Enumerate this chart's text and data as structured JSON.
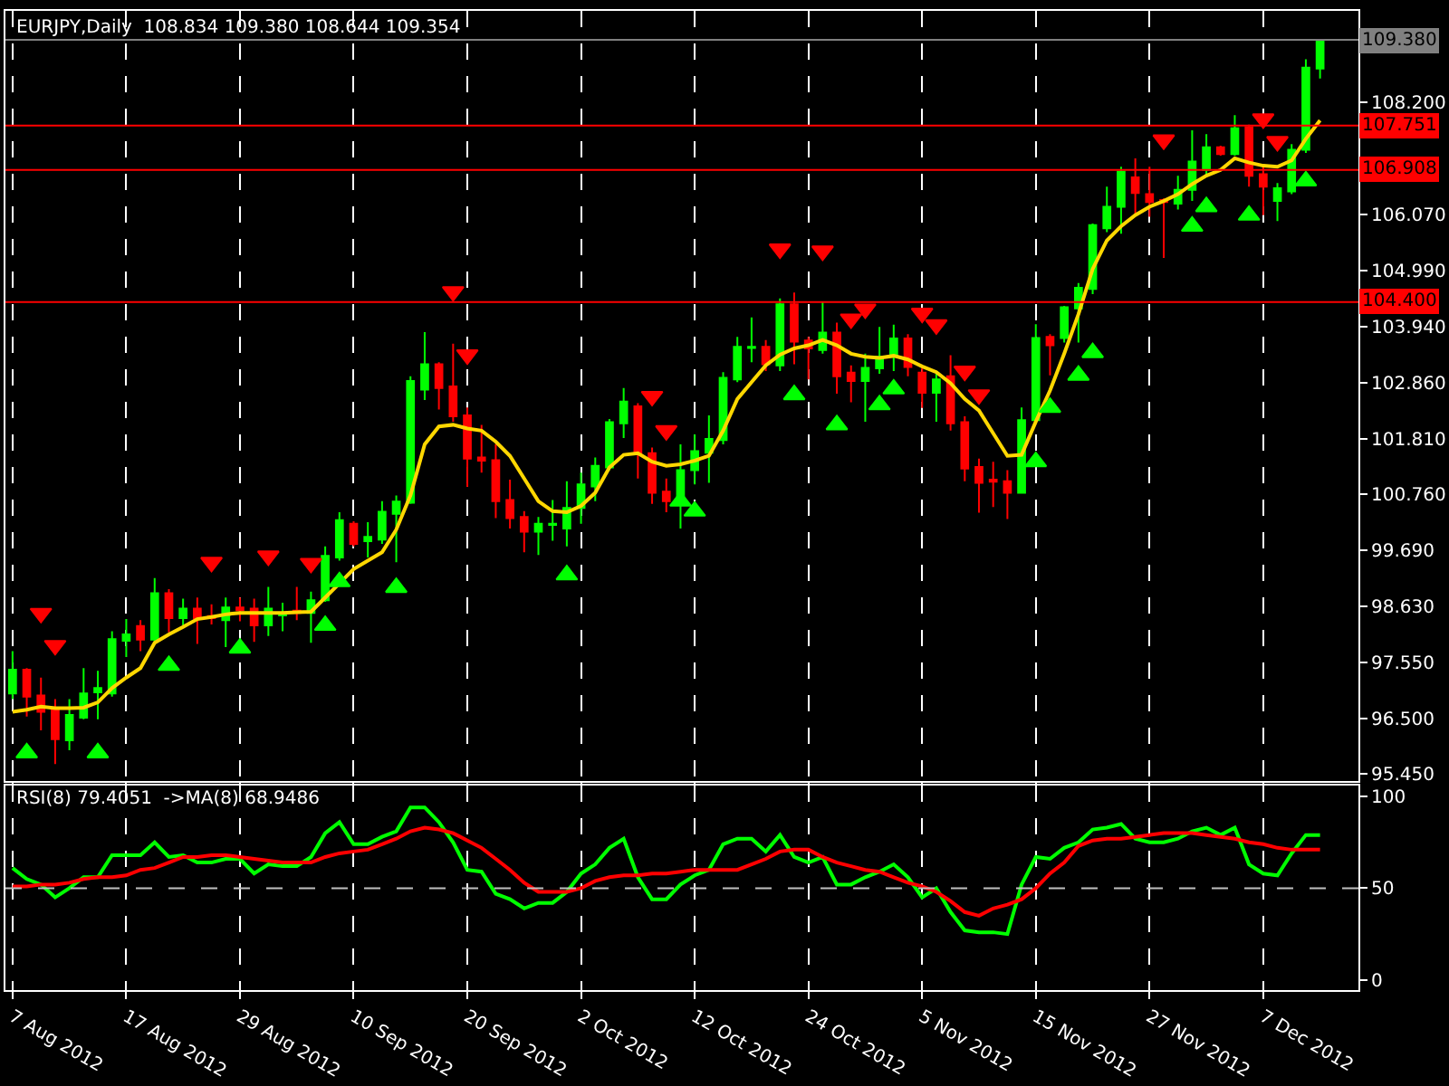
{
  "chart_data": [
    {
      "type": "candlestick",
      "title": "EURJPY,Daily  108.834 109.380 108.644 109.354",
      "categories": [
        null,
        null,
        null,
        null,
        null,
        null,
        null,
        null,
        null,
        null,
        null,
        null,
        null,
        null,
        null,
        null,
        null,
        null,
        null,
        null,
        null,
        null,
        null,
        null,
        null,
        null,
        null,
        null,
        null,
        null,
        null,
        null,
        null,
        null,
        null,
        null,
        null,
        null,
        null,
        null,
        null,
        null,
        null,
        null,
        null,
        null,
        null,
        null,
        null,
        null,
        null,
        null,
        null,
        null,
        null,
        null,
        null,
        null,
        null,
        null,
        null,
        null,
        null,
        null,
        null,
        null,
        null,
        null,
        null,
        null,
        null,
        null,
        null,
        null,
        null,
        null,
        null,
        null,
        null,
        null,
        null,
        null,
        null,
        null,
        null,
        null,
        null,
        null,
        null,
        null,
        null,
        null,
        null
      ],
      "ohlc": [
        [
          96.97,
          97.77,
          96.86,
          97.42
        ],
        [
          97.42,
          97.45,
          96.53,
          96.91
        ],
        [
          96.93,
          97.27,
          96.27,
          96.62
        ],
        [
          96.66,
          96.86,
          95.63,
          96.1
        ],
        [
          96.08,
          96.86,
          95.89,
          96.56
        ],
        [
          96.51,
          97.45,
          96.48,
          96.97
        ],
        [
          96.99,
          97.4,
          96.48,
          97.07
        ],
        [
          96.97,
          98.15,
          96.91,
          98.0
        ],
        [
          97.97,
          98.38,
          97.66,
          98.09
        ],
        [
          98.25,
          98.36,
          97.77,
          97.99
        ],
        [
          97.99,
          99.16,
          97.93,
          98.87
        ],
        [
          98.87,
          98.95,
          98.13,
          98.4
        ],
        [
          98.4,
          98.77,
          98.26,
          98.58
        ],
        [
          98.58,
          98.79,
          97.91,
          98.4
        ],
        [
          98.44,
          98.66,
          98.28,
          98.4
        ],
        [
          98.36,
          98.79,
          97.85,
          98.6
        ],
        [
          98.6,
          98.79,
          98.34,
          98.55
        ],
        [
          98.58,
          98.77,
          97.95,
          98.26
        ],
        [
          98.26,
          98.99,
          98.06,
          98.58
        ],
        [
          98.45,
          98.69,
          98.15,
          98.49
        ],
        [
          98.54,
          98.99,
          98.36,
          98.5
        ],
        [
          98.5,
          98.9,
          97.93,
          98.74
        ],
        [
          98.74,
          99.76,
          98.71,
          99.58
        ],
        [
          99.55,
          100.41,
          99.49,
          100.26
        ],
        [
          100.19,
          100.24,
          99.76,
          99.81
        ],
        [
          99.86,
          100.22,
          99.55,
          99.94
        ],
        [
          99.89,
          100.62,
          99.81,
          100.42
        ],
        [
          100.38,
          100.73,
          99.46,
          100.61
        ],
        [
          100.59,
          102.99,
          100.57,
          102.9
        ],
        [
          102.74,
          103.83,
          102.54,
          103.22
        ],
        [
          103.22,
          103.26,
          102.36,
          102.77
        ],
        [
          102.8,
          103.61,
          102.13,
          102.23
        ],
        [
          102.25,
          102.4,
          100.89,
          101.43
        ],
        [
          101.45,
          102.07,
          101.16,
          101.39
        ],
        [
          101.4,
          101.7,
          100.3,
          100.62
        ],
        [
          100.64,
          101.03,
          100.1,
          100.3
        ],
        [
          100.32,
          100.43,
          99.65,
          100.04
        ],
        [
          100.04,
          100.32,
          99.6,
          100.19
        ],
        [
          100.17,
          100.64,
          99.87,
          100.19
        ],
        [
          100.1,
          101.0,
          99.76,
          100.49
        ],
        [
          100.49,
          101.16,
          100.19,
          100.94
        ],
        [
          100.9,
          101.45,
          100.62,
          101.29
        ],
        [
          101.26,
          102.18,
          101.21,
          102.12
        ],
        [
          102.1,
          102.77,
          101.82,
          102.51
        ],
        [
          102.42,
          102.48,
          101.05,
          101.53
        ],
        [
          101.53,
          101.64,
          100.57,
          100.78
        ],
        [
          100.8,
          101.05,
          100.41,
          100.62
        ],
        [
          100.59,
          101.7,
          100.1,
          101.21
        ],
        [
          101.21,
          101.89,
          100.94,
          101.57
        ],
        [
          101.54,
          102.25,
          100.97,
          101.8
        ],
        [
          101.78,
          103.07,
          101.7,
          102.96
        ],
        [
          102.93,
          103.74,
          102.88,
          103.55
        ],
        [
          103.53,
          104.11,
          103.26,
          103.55
        ],
        [
          103.55,
          103.68,
          103.09,
          103.22
        ],
        [
          103.2,
          104.47,
          103.09,
          104.36
        ],
        [
          104.36,
          104.58,
          103.22,
          103.65
        ],
        [
          103.67,
          103.74,
          102.93,
          103.52
        ],
        [
          103.49,
          104.41,
          103.42,
          103.82
        ],
        [
          103.82,
          104.01,
          102.66,
          102.99
        ],
        [
          103.06,
          103.2,
          102.5,
          102.9
        ],
        [
          102.9,
          103.42,
          102.13,
          103.15
        ],
        [
          103.14,
          103.93,
          103.04,
          103.36
        ],
        [
          103.36,
          103.97,
          103.09,
          103.71
        ],
        [
          103.71,
          103.79,
          102.99,
          103.17
        ],
        [
          103.06,
          103.2,
          102.39,
          102.68
        ],
        [
          102.68,
          103.04,
          102.13,
          102.93
        ],
        [
          102.99,
          103.39,
          101.96,
          102.1
        ],
        [
          102.12,
          102.23,
          101.0,
          101.24
        ],
        [
          101.27,
          101.43,
          100.4,
          100.97
        ],
        [
          101.03,
          101.37,
          100.51,
          100.99
        ],
        [
          101.0,
          101.21,
          100.28,
          100.78
        ],
        [
          100.78,
          102.4,
          100.78,
          102.16
        ],
        [
          102.16,
          103.98,
          102.13,
          103.72
        ],
        [
          103.74,
          103.79,
          103.01,
          103.58
        ],
        [
          103.72,
          104.33,
          103.63,
          104.3
        ],
        [
          104.28,
          104.76,
          103.63,
          104.67
        ],
        [
          104.65,
          105.89,
          104.55,
          105.86
        ],
        [
          105.8,
          106.59,
          105.73,
          106.21
        ],
        [
          106.21,
          106.97,
          105.7,
          106.88
        ],
        [
          106.77,
          107.13,
          106.05,
          106.47
        ],
        [
          106.45,
          106.97,
          106.02,
          106.3
        ],
        [
          106.34,
          106.37,
          105.24,
          106.3
        ],
        [
          106.27,
          106.8,
          106.16,
          106.53
        ],
        [
          106.53,
          107.66,
          106.32,
          107.07
        ],
        [
          106.91,
          107.59,
          106.8,
          107.34
        ],
        [
          107.34,
          107.37,
          107.18,
          107.21
        ],
        [
          107.21,
          107.95,
          107.18,
          107.7
        ],
        [
          107.72,
          107.77,
          106.59,
          106.8
        ],
        [
          106.83,
          107.02,
          106.05,
          106.59
        ],
        [
          106.32,
          106.66,
          105.94,
          106.56
        ],
        [
          106.5,
          107.4,
          106.45,
          107.29
        ],
        [
          107.29,
          109.01,
          107.23,
          108.85
        ],
        [
          108.834,
          109.38,
          108.644,
          109.354
        ]
      ],
      "colors": [
        "#00ff00",
        "#ff0000",
        "#ff0000",
        "#ff0000",
        "#00ff00",
        "#00ff00",
        "#00ff00",
        "#00ff00",
        "#00ff00",
        "#ff0000",
        "#00ff00",
        "#ff0000",
        "#00ff00",
        "#ff0000",
        "#ff0000",
        "#00ff00",
        "#ff0000",
        "#ff0000",
        "#00ff00",
        "#00ff00",
        "#ff0000",
        "#00ff00",
        "#00ff00",
        "#00ff00",
        "#ff0000",
        "#00ff00",
        "#00ff00",
        "#00ff00",
        "#00ff00",
        "#00ff00",
        "#ff0000",
        "#ff0000",
        "#ff0000",
        "#ff0000",
        "#ff0000",
        "#ff0000",
        "#ff0000",
        "#00ff00",
        "#00ff00",
        "#00ff00",
        "#00ff00",
        "#00ff00",
        "#00ff00",
        "#00ff00",
        "#ff0000",
        "#ff0000",
        "#ff0000",
        "#00ff00",
        "#00ff00",
        "#00ff00",
        "#00ff00",
        "#00ff00",
        "#00ff00",
        "#ff0000",
        "#00ff00",
        "#ff0000",
        "#ff0000",
        "#00ff00",
        "#ff0000",
        "#ff0000",
        "#00ff00",
        "#00ff00",
        "#00ff00",
        "#ff0000",
        "#ff0000",
        "#00ff00",
        "#ff0000",
        "#ff0000",
        "#ff0000",
        "#ff0000",
        "#ff0000",
        "#00ff00",
        "#00ff00",
        "#ff0000",
        "#00ff00",
        "#00ff00",
        "#00ff00",
        "#00ff00",
        "#00ff00",
        "#ff0000",
        "#ff0000",
        "#ff0000",
        "#00ff00",
        "#00ff00",
        "#00ff00",
        "#ff0000",
        "#00ff00",
        "#ff0000",
        "#ff0000",
        "#00ff00",
        "#00ff00",
        "#00ff00",
        "#00ff00"
      ],
      "series": [
        {
          "type": "line",
          "color": "#ffd700",
          "values": [
            96.62,
            96.66,
            96.72,
            96.69,
            96.69,
            96.7,
            96.8,
            97.07,
            97.27,
            97.45,
            97.93,
            98.09,
            98.23,
            98.38,
            98.42,
            98.47,
            98.5,
            98.5,
            98.5,
            98.5,
            98.51,
            98.52,
            98.79,
            99.06,
            99.33,
            99.49,
            99.65,
            100.08,
            100.73,
            101.7,
            102.04,
            102.07,
            102.0,
            101.96,
            101.75,
            101.48,
            101.05,
            100.62,
            100.43,
            100.41,
            100.53,
            100.78,
            101.26,
            101.5,
            101.53,
            101.37,
            101.29,
            101.32,
            101.39,
            101.48,
            101.96,
            102.56,
            102.88,
            103.2,
            103.4,
            103.52,
            103.58,
            103.68,
            103.58,
            103.42,
            103.36,
            103.34,
            103.38,
            103.31,
            103.18,
            103.07,
            102.86,
            102.56,
            102.34,
            101.91,
            101.48,
            101.5,
            102.13,
            102.72,
            103.42,
            104.17,
            105.03,
            105.57,
            105.84,
            106.05,
            106.21,
            106.32,
            106.45,
            106.64,
            106.8,
            106.91,
            107.13,
            107.05,
            106.99,
            106.97,
            107.09,
            107.5,
            107.85
          ]
        },
        {
          "type": "scatter",
          "marker": "triangle",
          "color": "#ff0000",
          "values": [
            null,
            null,
            98.49,
            97.88,
            null,
            null,
            null,
            null,
            null,
            null,
            null,
            null,
            null,
            null,
            99.46,
            null,
            null,
            null,
            99.58,
            null,
            null,
            99.44,
            null,
            null,
            null,
            null,
            null,
            null,
            null,
            null,
            null,
            104.6,
            103.4,
            null,
            null,
            null,
            null,
            null,
            null,
            null,
            null,
            null,
            null,
            null,
            null,
            102.61,
            101.96,
            null,
            null,
            null,
            null,
            null,
            null,
            null,
            105.41,
            null,
            null,
            105.37,
            null,
            104.08,
            104.27,
            null,
            null,
            null,
            104.19,
            103.97,
            null,
            103.09,
            102.64,
            null,
            null,
            null,
            null,
            null,
            null,
            null,
            null,
            null,
            null,
            null,
            null,
            107.48,
            null,
            null,
            null,
            null,
            null,
            null,
            107.88,
            107.45,
            null,
            null,
            null
          ]
        },
        {
          "type": "scatter",
          "marker": "triangle",
          "color": "#00ff00",
          "values": [
            null,
            95.84,
            null,
            null,
            null,
            null,
            95.84,
            null,
            null,
            null,
            null,
            97.5,
            null,
            null,
            null,
            null,
            97.83,
            null,
            null,
            null,
            null,
            null,
            98.26,
            99.09,
            null,
            null,
            null,
            98.98,
            null,
            null,
            null,
            null,
            null,
            null,
            null,
            null,
            null,
            null,
            null,
            99.22,
            null,
            null,
            null,
            null,
            null,
            null,
            null,
            100.62,
            100.43,
            null,
            null,
            null,
            null,
            null,
            null,
            102.64,
            null,
            null,
            102.07,
            null,
            null,
            102.45,
            102.75,
            null,
            null,
            null,
            null,
            null,
            null,
            null,
            null,
            null,
            101.37,
            102.4,
            null,
            103.01,
            103.44,
            null,
            null,
            null,
            null,
            null,
            null,
            105.84,
            106.21,
            null,
            null,
            106.05,
            null,
            null,
            null,
            106.7,
            null
          ]
        }
      ],
      "ylim": [
        95.3,
        109.93
      ],
      "yticks": [
        {
          "value": 95.45,
          "label": "95.450"
        },
        {
          "value": 96.5,
          "label": "96.500"
        },
        {
          "value": 97.55,
          "label": "97.550"
        },
        {
          "value": 98.63,
          "label": "98.630"
        },
        {
          "value": 99.69,
          "label": "99.690"
        },
        {
          "value": 100.76,
          "label": "100.760"
        },
        {
          "value": 101.81,
          "label": "101.810"
        },
        {
          "value": 102.86,
          "label": "102.860"
        },
        {
          "value": 103.94,
          "label": "103.940"
        },
        {
          "value": 104.99,
          "label": "104.990"
        },
        {
          "value": 106.07,
          "label": "106.070"
        },
        {
          "value": 108.2,
          "label": "108.200"
        }
      ],
      "ref_lines": [
        {
          "axis": "y",
          "value": 109.38,
          "label": "109.380",
          "color": "#808080"
        },
        {
          "axis": "y",
          "value": 107.751,
          "label": "107.751",
          "color": "#ff0000"
        },
        {
          "axis": "y",
          "value": 106.908,
          "label": "106.908",
          "color": "#ff0000"
        },
        {
          "axis": "y",
          "value": 104.4,
          "label": "104.400",
          "color": "#ff0000"
        }
      ],
      "grid": "x",
      "tick_labels": "y"
    },
    {
      "type": "line",
      "title": "RSI(8) 79.4051  ->MA(8) 68.9486",
      "categories": [
        "7 Aug 2012",
        null,
        null,
        null,
        null,
        null,
        null,
        null,
        "17 Aug 2012",
        null,
        null,
        null,
        null,
        null,
        null,
        null,
        "29 Aug 2012",
        null,
        null,
        null,
        null,
        null,
        null,
        null,
        "10 Sep 2012",
        null,
        null,
        null,
        null,
        null,
        null,
        null,
        "20 Sep 2012",
        null,
        null,
        null,
        null,
        null,
        null,
        null,
        "2 Oct 2012",
        null,
        null,
        null,
        null,
        null,
        null,
        null,
        "12 Oct 2012",
        null,
        null,
        null,
        null,
        null,
        null,
        null,
        "24 Oct 2012",
        null,
        null,
        null,
        null,
        null,
        null,
        null,
        "5 Nov 2012",
        null,
        null,
        null,
        null,
        null,
        null,
        null,
        "15 Nov 2012",
        null,
        null,
        null,
        null,
        null,
        null,
        null,
        "27 Nov 2012",
        null,
        null,
        null,
        null,
        null,
        null,
        null,
        "7 Dec 2012",
        null,
        null,
        null,
        null
      ],
      "series": [
        {
          "color": "#00ff00",
          "values": [
            61,
            55,
            52,
            45,
            50,
            56,
            56,
            68,
            68,
            68,
            75,
            67,
            68,
            64,
            64,
            66,
            66,
            58,
            63,
            62,
            62,
            67,
            80,
            86,
            74,
            74,
            78,
            81,
            94,
            94,
            86,
            75,
            60,
            59,
            47,
            44,
            39,
            42,
            42,
            48,
            58,
            63,
            72,
            77,
            56,
            44,
            44,
            52,
            57,
            60,
            74,
            77,
            77,
            70,
            79,
            67,
            64,
            67,
            52,
            52,
            56,
            59,
            63,
            56,
            45,
            50,
            37,
            27,
            26,
            26,
            25,
            52,
            67,
            66,
            72,
            75,
            82,
            83,
            85,
            77,
            75,
            75,
            77,
            81,
            83,
            79,
            83,
            63,
            58,
            57,
            69,
            79,
            79
          ]
        },
        {
          "color": "#ff0000",
          "values": [
            51,
            51,
            52,
            52,
            53,
            55,
            56,
            56,
            57,
            60,
            61,
            64,
            67,
            67,
            68,
            68,
            67,
            66,
            65,
            64,
            64,
            64,
            67,
            69,
            70,
            71,
            74,
            77,
            81,
            83,
            82,
            80,
            76,
            72,
            66,
            60,
            53,
            48,
            48,
            48,
            50,
            54,
            56,
            57,
            57,
            58,
            58,
            59,
            60,
            60,
            60,
            60,
            63,
            66,
            70,
            71,
            71,
            67,
            64,
            62,
            60,
            59,
            56,
            53,
            51,
            48,
            43,
            37,
            35,
            39,
            41,
            44,
            50,
            58,
            64,
            73,
            76,
            77,
            77,
            78,
            79,
            80,
            80,
            80,
            79,
            78,
            77,
            75,
            74,
            72,
            71,
            71,
            71
          ]
        }
      ],
      "ylim": [
        -5.5,
        106.1
      ],
      "yticks": [
        0,
        50,
        100
      ],
      "ref_lines": [
        {
          "axis": "y",
          "value": 50,
          "color": "#c0c0c0",
          "line_style": "dashed"
        }
      ],
      "grid": "x",
      "marker": "none",
      "line_style": "solid"
    }
  ]
}
